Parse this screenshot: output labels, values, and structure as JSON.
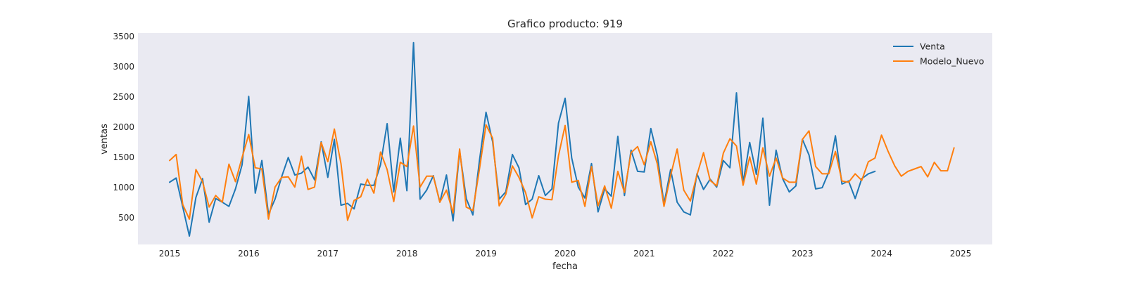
{
  "chart_data": {
    "type": "line",
    "title": "Grafico producto: 919",
    "xlabel": "fecha",
    "ylabel": "ventas",
    "xlim": [
      2014.6,
      2025.4
    ],
    "ylim": [
      60,
      3560
    ],
    "x_ticks": [
      2015,
      2016,
      2017,
      2018,
      2019,
      2020,
      2021,
      2022,
      2023,
      2024,
      2025
    ],
    "y_ticks": [
      500,
      1000,
      1500,
      2000,
      2500,
      3000,
      3500
    ],
    "grid": false,
    "legend_position": "top-right",
    "colors": {
      "background": "#eaeaf2",
      "venta": "#1f77b4",
      "modelo": "#ff7f0e"
    },
    "series": [
      {
        "name": "Venta",
        "x_start": 2015.0,
        "step": 0.0833333,
        "values": [
          1090,
          1160,
          680,
          200,
          840,
          1150,
          430,
          820,
          760,
          690,
          980,
          1380,
          2510,
          910,
          1450,
          560,
          810,
          1180,
          1500,
          1210,
          1240,
          1340,
          1130,
          1760,
          1170,
          1800,
          710,
          740,
          650,
          1060,
          1040,
          1040,
          1380,
          2060,
          930,
          1820,
          950,
          3400,
          810,
          960,
          1200,
          760,
          1210,
          450,
          1610,
          820,
          550,
          1440,
          2250,
          1760,
          810,
          930,
          1550,
          1330,
          720,
          810,
          1200,
          870,
          980,
          2070,
          2480,
          1490,
          1010,
          830,
          1400,
          600,
          980,
          860,
          1850,
          870,
          1620,
          1270,
          1260,
          1980,
          1530,
          730,
          1300,
          760,
          600,
          550,
          1230,
          970,
          1140,
          1010,
          1450,
          1330,
          2570,
          1080,
          1750,
          1220,
          2150,
          710,
          1620,
          1150,
          930,
          1030,
          1800,
          1540,
          980,
          1000,
          1260,
          1860,
          1060,
          1110,
          820,
          1150,
          1230,
          1270
        ]
      },
      {
        "name": "Modelo_Nuevo",
        "x_start": 2015.0,
        "step": 0.0833333,
        "values": [
          1450,
          1550,
          720,
          480,
          1300,
          1100,
          680,
          870,
          760,
          1390,
          1100,
          1500,
          1880,
          1330,
          1310,
          480,
          1010,
          1170,
          1180,
          1010,
          1520,
          970,
          1010,
          1750,
          1430,
          1970,
          1400,
          460,
          790,
          850,
          1140,
          910,
          1590,
          1300,
          770,
          1420,
          1350,
          2020,
          1010,
          1190,
          1190,
          760,
          960,
          580,
          1640,
          680,
          620,
          1300,
          2040,
          1820,
          700,
          890,
          1360,
          1170,
          920,
          500,
          850,
          810,
          800,
          1530,
          2030,
          1090,
          1120,
          690,
          1350,
          700,
          1030,
          660,
          1270,
          920,
          1580,
          1680,
          1380,
          1760,
          1390,
          690,
          1200,
          1640,
          960,
          780,
          1210,
          1580,
          1120,
          1030,
          1570,
          1810,
          1690,
          1040,
          1510,
          1060,
          1660,
          1190,
          1490,
          1160,
          1090,
          1090,
          1800,
          1940,
          1350,
          1230,
          1230,
          1600,
          1110,
          1090,
          1230,
          1120,
          1430,
          1490,
          1870,
          1600,
          1360,
          1190,
          1270,
          1310,
          1350,
          1180,
          1420,
          1280,
          1280,
          1660
        ]
      }
    ]
  }
}
